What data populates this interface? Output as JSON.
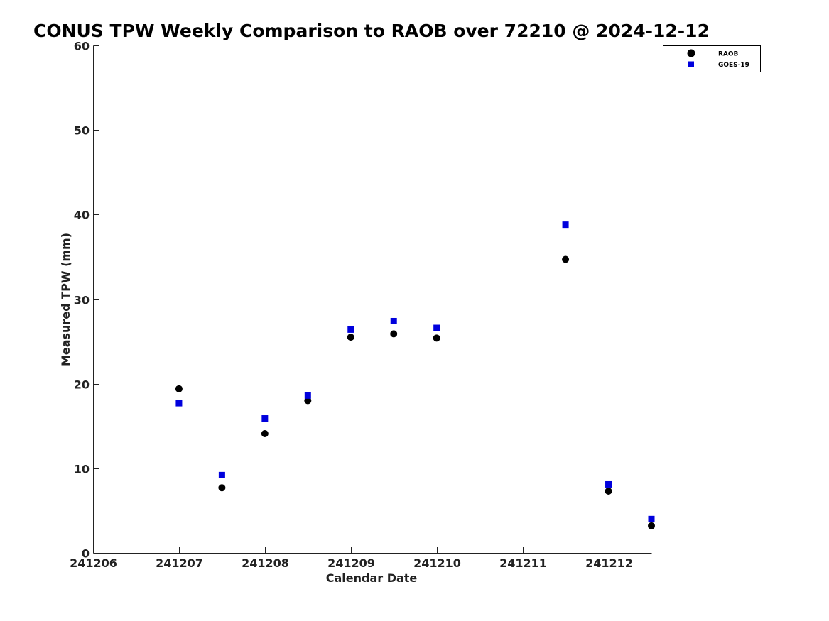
{
  "chart_data": {
    "type": "scatter",
    "title": "CONUS TPW Weekly Comparison to RAOB over 72210 @ 2024-12-12",
    "xlabel": "Calendar Date",
    "ylabel": "Measured TPW (mm)",
    "xlim": [
      241206,
      241212.5
    ],
    "ylim": [
      0,
      60
    ],
    "x_ticks": [
      {
        "value": 241206,
        "label": "241206"
      },
      {
        "value": 241207,
        "label": "241207"
      },
      {
        "value": 241208,
        "label": "241208"
      },
      {
        "value": 241209,
        "label": "241209"
      },
      {
        "value": 241210,
        "label": "241210"
      },
      {
        "value": 241211,
        "label": "241211"
      },
      {
        "value": 241212,
        "label": "241212"
      }
    ],
    "y_ticks": [
      {
        "value": 0,
        "label": "0"
      },
      {
        "value": 10,
        "label": "10"
      },
      {
        "value": 20,
        "label": "20"
      },
      {
        "value": 30,
        "label": "30"
      },
      {
        "value": 40,
        "label": "40"
      },
      {
        "value": 50,
        "label": "50"
      },
      {
        "value": 60,
        "label": "60"
      }
    ],
    "grid": false,
    "legend_position": "top-right",
    "series": [
      {
        "name": "RAOB",
        "marker": "circle",
        "color": "#000000",
        "points": [
          {
            "x": 241207.0,
            "y": 19.4
          },
          {
            "x": 241207.5,
            "y": 7.7
          },
          {
            "x": 241208.0,
            "y": 14.1
          },
          {
            "x": 241208.5,
            "y": 18.0
          },
          {
            "x": 241209.0,
            "y": 25.5
          },
          {
            "x": 241209.5,
            "y": 25.9
          },
          {
            "x": 241210.0,
            "y": 25.4
          },
          {
            "x": 241211.5,
            "y": 34.7
          },
          {
            "x": 241212.0,
            "y": 7.3
          },
          {
            "x": 241212.5,
            "y": 3.2
          }
        ]
      },
      {
        "name": "GOES-19",
        "marker": "square",
        "color": "#0000dd",
        "points": [
          {
            "x": 241207.0,
            "y": 17.7
          },
          {
            "x": 241207.5,
            "y": 9.2
          },
          {
            "x": 241208.0,
            "y": 15.9
          },
          {
            "x": 241208.5,
            "y": 18.6
          },
          {
            "x": 241209.0,
            "y": 26.4
          },
          {
            "x": 241209.5,
            "y": 27.4
          },
          {
            "x": 241210.0,
            "y": 26.6
          },
          {
            "x": 241211.5,
            "y": 38.8
          },
          {
            "x": 241212.0,
            "y": 8.1
          },
          {
            "x": 241212.5,
            "y": 4.0
          }
        ]
      }
    ]
  }
}
